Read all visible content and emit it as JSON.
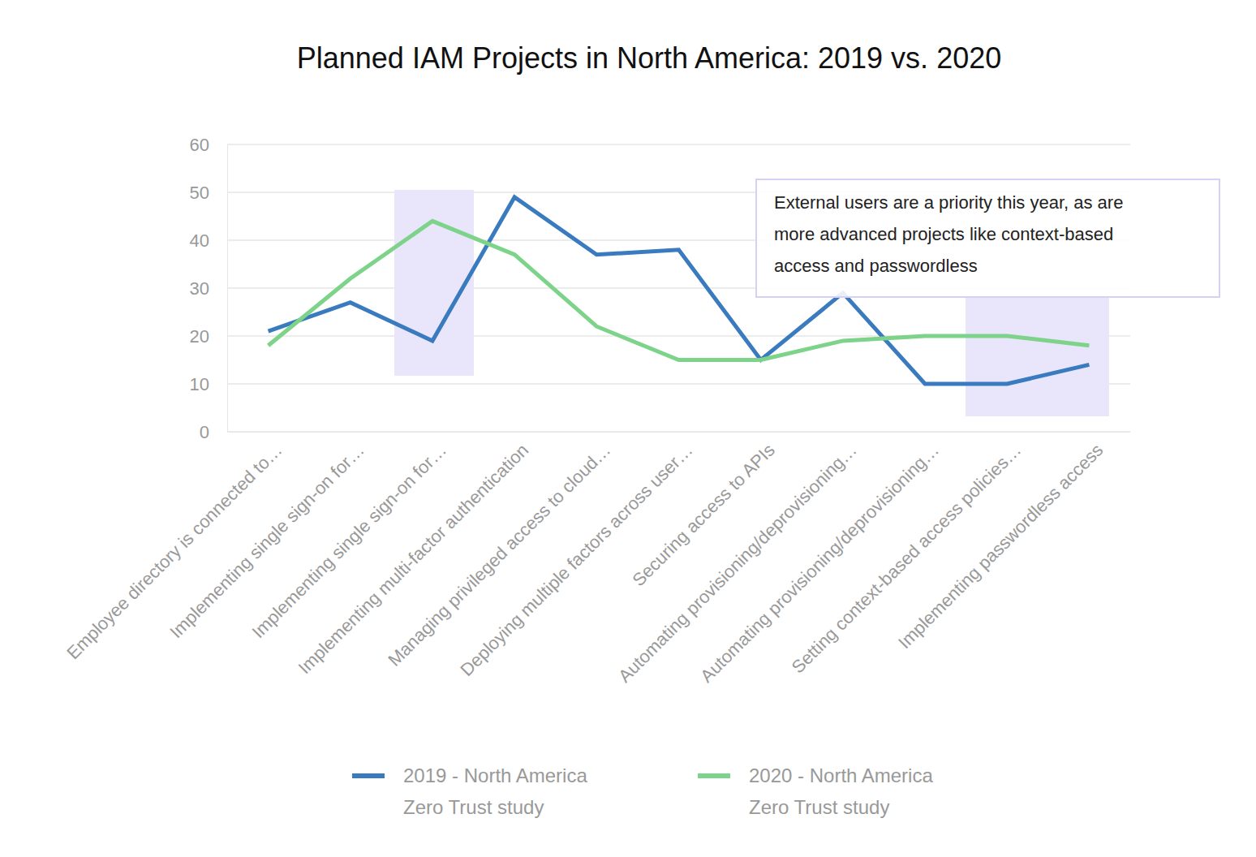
{
  "chart_data": {
    "type": "line",
    "title": "Planned IAM Projects in North America: 2019 vs. 2020",
    "categories": [
      "Employee directory is connected to…",
      "Implementing single sign-on for…",
      "Implementing single sign-on for…",
      "Implementing multi-factor authentication",
      "Managing privileged access to cloud…",
      "Deploying multiple factors across user…",
      "Securing access to APIs",
      "Automating provisioning/deprovisioning…",
      "Automating provisioning/deprovisioning…",
      "Setting context-based access policies…",
      "Implementing passwordless access"
    ],
    "series": [
      {
        "name": "2019 - North America Zero Trust study",
        "color": "#3a7bbf",
        "values": [
          21,
          27,
          19,
          49,
          37,
          38,
          15,
          29,
          10,
          10,
          14
        ]
      },
      {
        "name": "2020 - North America Zero Trust study",
        "color": "#7dd389",
        "values": [
          18,
          32,
          44,
          37,
          22,
          15,
          15,
          19,
          20,
          20,
          18
        ]
      }
    ],
    "ylim": [
      0,
      60
    ],
    "yticks": [
      0,
      10,
      20,
      30,
      40,
      50,
      60
    ],
    "grid": true,
    "legend": "bottom",
    "annotation": [
      "External users are a priority this year, as are",
      "more advanced projects like context-based",
      "access and passwordless"
    ]
  }
}
